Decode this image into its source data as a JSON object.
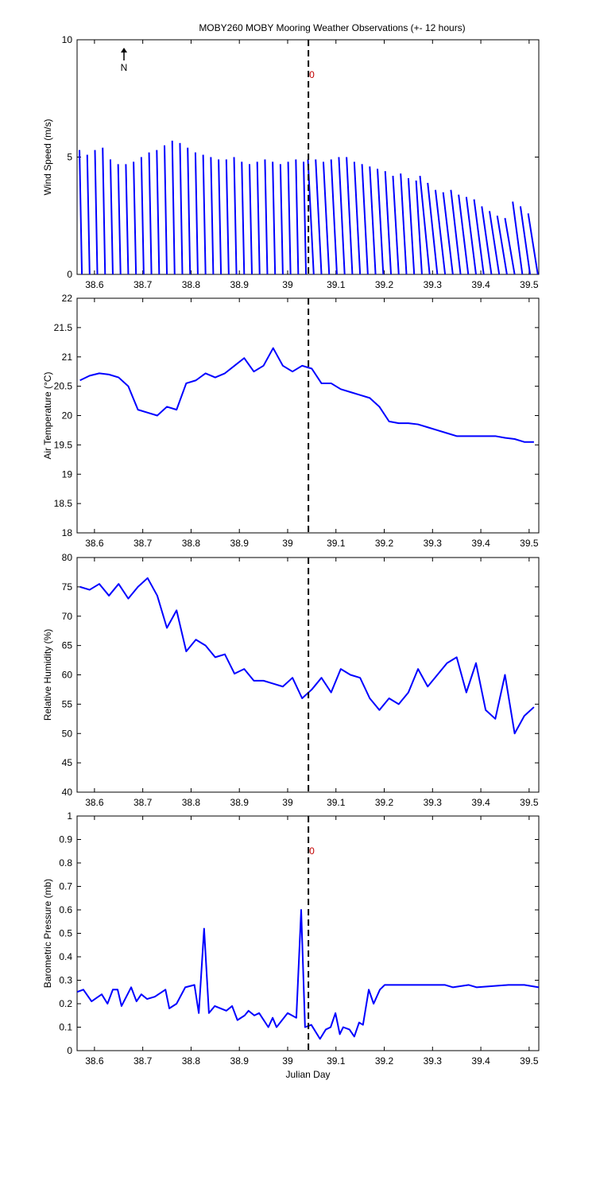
{
  "chart_data": [
    {
      "type": "stick",
      "title": "MOBY260 MOBY Mooring Weather Observations (+- 12 hours)",
      "ylabel": "Wind Speed (m/s)",
      "color": "#0000ff",
      "annotations": [
        "N",
        "0"
      ],
      "vline": 39.043,
      "x": [
        38.574,
        38.59,
        38.606,
        38.622,
        38.638,
        38.654,
        38.67,
        38.686,
        38.702,
        38.718,
        38.734,
        38.75,
        38.766,
        38.782,
        38.798,
        38.814,
        38.83,
        38.846,
        38.862,
        38.878,
        38.894,
        38.91,
        38.926,
        38.942,
        38.958,
        38.974,
        38.99,
        39.006,
        39.022,
        39.038,
        39.054,
        39.07,
        39.086,
        39.102,
        39.118,
        39.134,
        39.15,
        39.166,
        39.182,
        39.198,
        39.214,
        39.23,
        39.246,
        39.262,
        39.278,
        39.294,
        39.31,
        39.326,
        39.342,
        39.358,
        39.374,
        39.39,
        39.406,
        39.422,
        39.438,
        39.454,
        39.47,
        39.486,
        39.502,
        39.518
      ],
      "x_end": [
        38.569,
        38.585,
        38.601,
        38.617,
        38.633,
        38.649,
        38.665,
        38.681,
        38.697,
        38.713,
        38.729,
        38.745,
        38.761,
        38.777,
        38.793,
        38.809,
        38.825,
        38.841,
        38.857,
        38.873,
        38.889,
        38.905,
        38.921,
        38.937,
        38.953,
        38.969,
        38.985,
        39.001,
        39.017,
        39.033,
        39.042,
        39.058,
        39.074,
        39.09,
        39.106,
        39.122,
        39.138,
        39.154,
        39.17,
        39.186,
        39.202,
        39.218,
        39.234,
        39.25,
        39.266,
        39.274,
        39.29,
        39.306,
        39.322,
        39.338,
        39.354,
        39.37,
        39.386,
        39.402,
        39.418,
        39.434,
        39.45,
        39.466,
        39.482,
        39.498
      ],
      "values": [
        5.3,
        5.1,
        5.3,
        5.4,
        4.9,
        4.7,
        4.7,
        4.8,
        5.0,
        5.2,
        5.3,
        5.5,
        5.7,
        5.6,
        5.4,
        5.2,
        5.1,
        5.0,
        4.9,
        4.9,
        5.0,
        4.8,
        4.7,
        4.8,
        4.9,
        4.8,
        4.7,
        4.8,
        4.9,
        4.8,
        4.9,
        4.9,
        4.8,
        4.9,
        5.0,
        5.0,
        4.8,
        4.7,
        4.6,
        4.5,
        4.4,
        4.2,
        4.3,
        4.1,
        4.0,
        4.2,
        3.9,
        3.6,
        3.5,
        3.6,
        3.4,
        3.3,
        3.2,
        2.9,
        2.7,
        2.5,
        2.4,
        3.1,
        2.9,
        2.6
      ],
      "xlim": [
        38.564,
        39.52
      ],
      "xticks": [
        38.6,
        38.7,
        38.8,
        38.9,
        39,
        39.1,
        39.2,
        39.3,
        39.4,
        39.5
      ],
      "ylim": [
        0,
        10
      ],
      "yticks": [
        0,
        5,
        10
      ]
    },
    {
      "type": "line",
      "ylabel": "Air Temperature (°C)",
      "color": "#0000ff",
      "vline": 39.043,
      "x": [
        38.57,
        38.59,
        38.61,
        38.63,
        38.65,
        38.67,
        38.69,
        38.71,
        38.73,
        38.75,
        38.77,
        38.79,
        38.81,
        38.83,
        38.85,
        38.87,
        38.89,
        38.91,
        38.93,
        38.95,
        38.97,
        38.99,
        39.01,
        39.03,
        39.05,
        39.07,
        39.09,
        39.11,
        39.13,
        39.15,
        39.17,
        39.19,
        39.21,
        39.23,
        39.25,
        39.27,
        39.29,
        39.31,
        39.33,
        39.35,
        39.37,
        39.39,
        39.41,
        39.43,
        39.45,
        39.47,
        39.49,
        39.51
      ],
      "values": [
        20.6,
        20.68,
        20.72,
        20.7,
        20.65,
        20.5,
        20.1,
        20.05,
        20.0,
        20.15,
        20.1,
        20.55,
        20.6,
        20.72,
        20.65,
        20.72,
        20.85,
        20.98,
        20.75,
        20.85,
        21.15,
        20.85,
        20.75,
        20.85,
        20.8,
        20.55,
        20.55,
        20.45,
        20.4,
        20.35,
        20.3,
        20.15,
        19.9,
        19.87,
        19.87,
        19.85,
        19.8,
        19.75,
        19.7,
        19.65,
        19.65,
        19.65,
        19.65,
        19.65,
        19.62,
        19.6,
        19.55,
        19.55
      ],
      "xlim": [
        38.564,
        39.52
      ],
      "xticks": [
        38.6,
        38.7,
        38.8,
        38.9,
        39,
        39.1,
        39.2,
        39.3,
        39.4,
        39.5
      ],
      "ylim": [
        18,
        22
      ],
      "yticks": [
        18,
        18.5,
        19,
        19.5,
        20,
        20.5,
        21,
        21.5,
        22
      ]
    },
    {
      "type": "line",
      "ylabel": "Relative Humidity (%)",
      "color": "#0000ff",
      "vline": 39.043,
      "x": [
        38.57,
        38.59,
        38.61,
        38.63,
        38.65,
        38.67,
        38.69,
        38.71,
        38.73,
        38.75,
        38.77,
        38.79,
        38.81,
        38.83,
        38.85,
        38.87,
        38.89,
        38.91,
        38.93,
        38.95,
        38.97,
        38.99,
        39.01,
        39.03,
        39.05,
        39.07,
        39.09,
        39.11,
        39.13,
        39.15,
        39.17,
        39.19,
        39.21,
        39.23,
        39.25,
        39.27,
        39.29,
        39.31,
        39.33,
        39.35,
        39.37,
        39.39,
        39.41,
        39.43,
        39.45,
        39.47,
        39.49,
        39.51
      ],
      "values": [
        75,
        74.5,
        75.5,
        73.5,
        75.5,
        73,
        75,
        76.5,
        73.5,
        68,
        71,
        64,
        66,
        65,
        63,
        63.5,
        60.2,
        61,
        59,
        59,
        58.5,
        58,
        59.5,
        56,
        57.5,
        59.5,
        57,
        61,
        60,
        59.5,
        56,
        54,
        56,
        55,
        57,
        61,
        58,
        60,
        62,
        63,
        57,
        62,
        54,
        52.5,
        60,
        50,
        53,
        54.5
      ],
      "xlim": [
        38.564,
        39.52
      ],
      "xticks": [
        38.6,
        38.7,
        38.8,
        38.9,
        39,
        39.1,
        39.2,
        39.3,
        39.4,
        39.5
      ],
      "ylim": [
        40,
        80
      ],
      "yticks": [
        40,
        45,
        50,
        55,
        60,
        65,
        70,
        75,
        80
      ]
    },
    {
      "type": "line",
      "ylabel": "Barometric Pressure (mb)",
      "xlabel": "Julian Day",
      "color": "#0000ff",
      "vline": 39.043,
      "annotations": [
        "0"
      ],
      "x": [
        38.564,
        38.577,
        38.594,
        38.615,
        38.627,
        38.638,
        38.648,
        38.656,
        38.676,
        38.687,
        38.697,
        38.709,
        38.725,
        38.747,
        38.755,
        38.77,
        38.788,
        38.807,
        38.816,
        38.827,
        38.837,
        38.849,
        38.873,
        38.885,
        38.896,
        38.911,
        38.919,
        38.931,
        38.941,
        38.96,
        38.969,
        38.977,
        39.0,
        39.018,
        39.028,
        39.036,
        39.049,
        39.067,
        39.079,
        39.089,
        39.099,
        39.108,
        39.115,
        39.128,
        39.138,
        39.148,
        39.156,
        39.168,
        39.178,
        39.191,
        39.201,
        39.326,
        39.342,
        39.375,
        39.391,
        39.457,
        39.49,
        39.52
      ],
      "values": [
        0.25,
        0.26,
        0.21,
        0.24,
        0.2,
        0.26,
        0.26,
        0.19,
        0.27,
        0.21,
        0.24,
        0.22,
        0.23,
        0.26,
        0.18,
        0.2,
        0.27,
        0.28,
        0.16,
        0.52,
        0.16,
        0.19,
        0.17,
        0.19,
        0.13,
        0.15,
        0.17,
        0.15,
        0.16,
        0.1,
        0.14,
        0.1,
        0.16,
        0.14,
        0.6,
        0.1,
        0.11,
        0.05,
        0.09,
        0.1,
        0.16,
        0.07,
        0.1,
        0.09,
        0.06,
        0.12,
        0.11,
        0.26,
        0.2,
        0.26,
        0.28,
        0.28,
        0.27,
        0.28,
        0.27,
        0.28,
        0.28,
        0.27
      ],
      "xlim": [
        38.564,
        39.52
      ],
      "xticks": [
        38.6,
        38.7,
        38.8,
        38.9,
        39,
        39.1,
        39.2,
        39.3,
        39.4,
        39.5
      ],
      "ylim": [
        0,
        1
      ],
      "yticks": [
        0,
        0.1,
        0.2,
        0.3,
        0.4,
        0.5,
        0.6,
        0.7,
        0.8,
        0.9,
        1
      ]
    }
  ]
}
